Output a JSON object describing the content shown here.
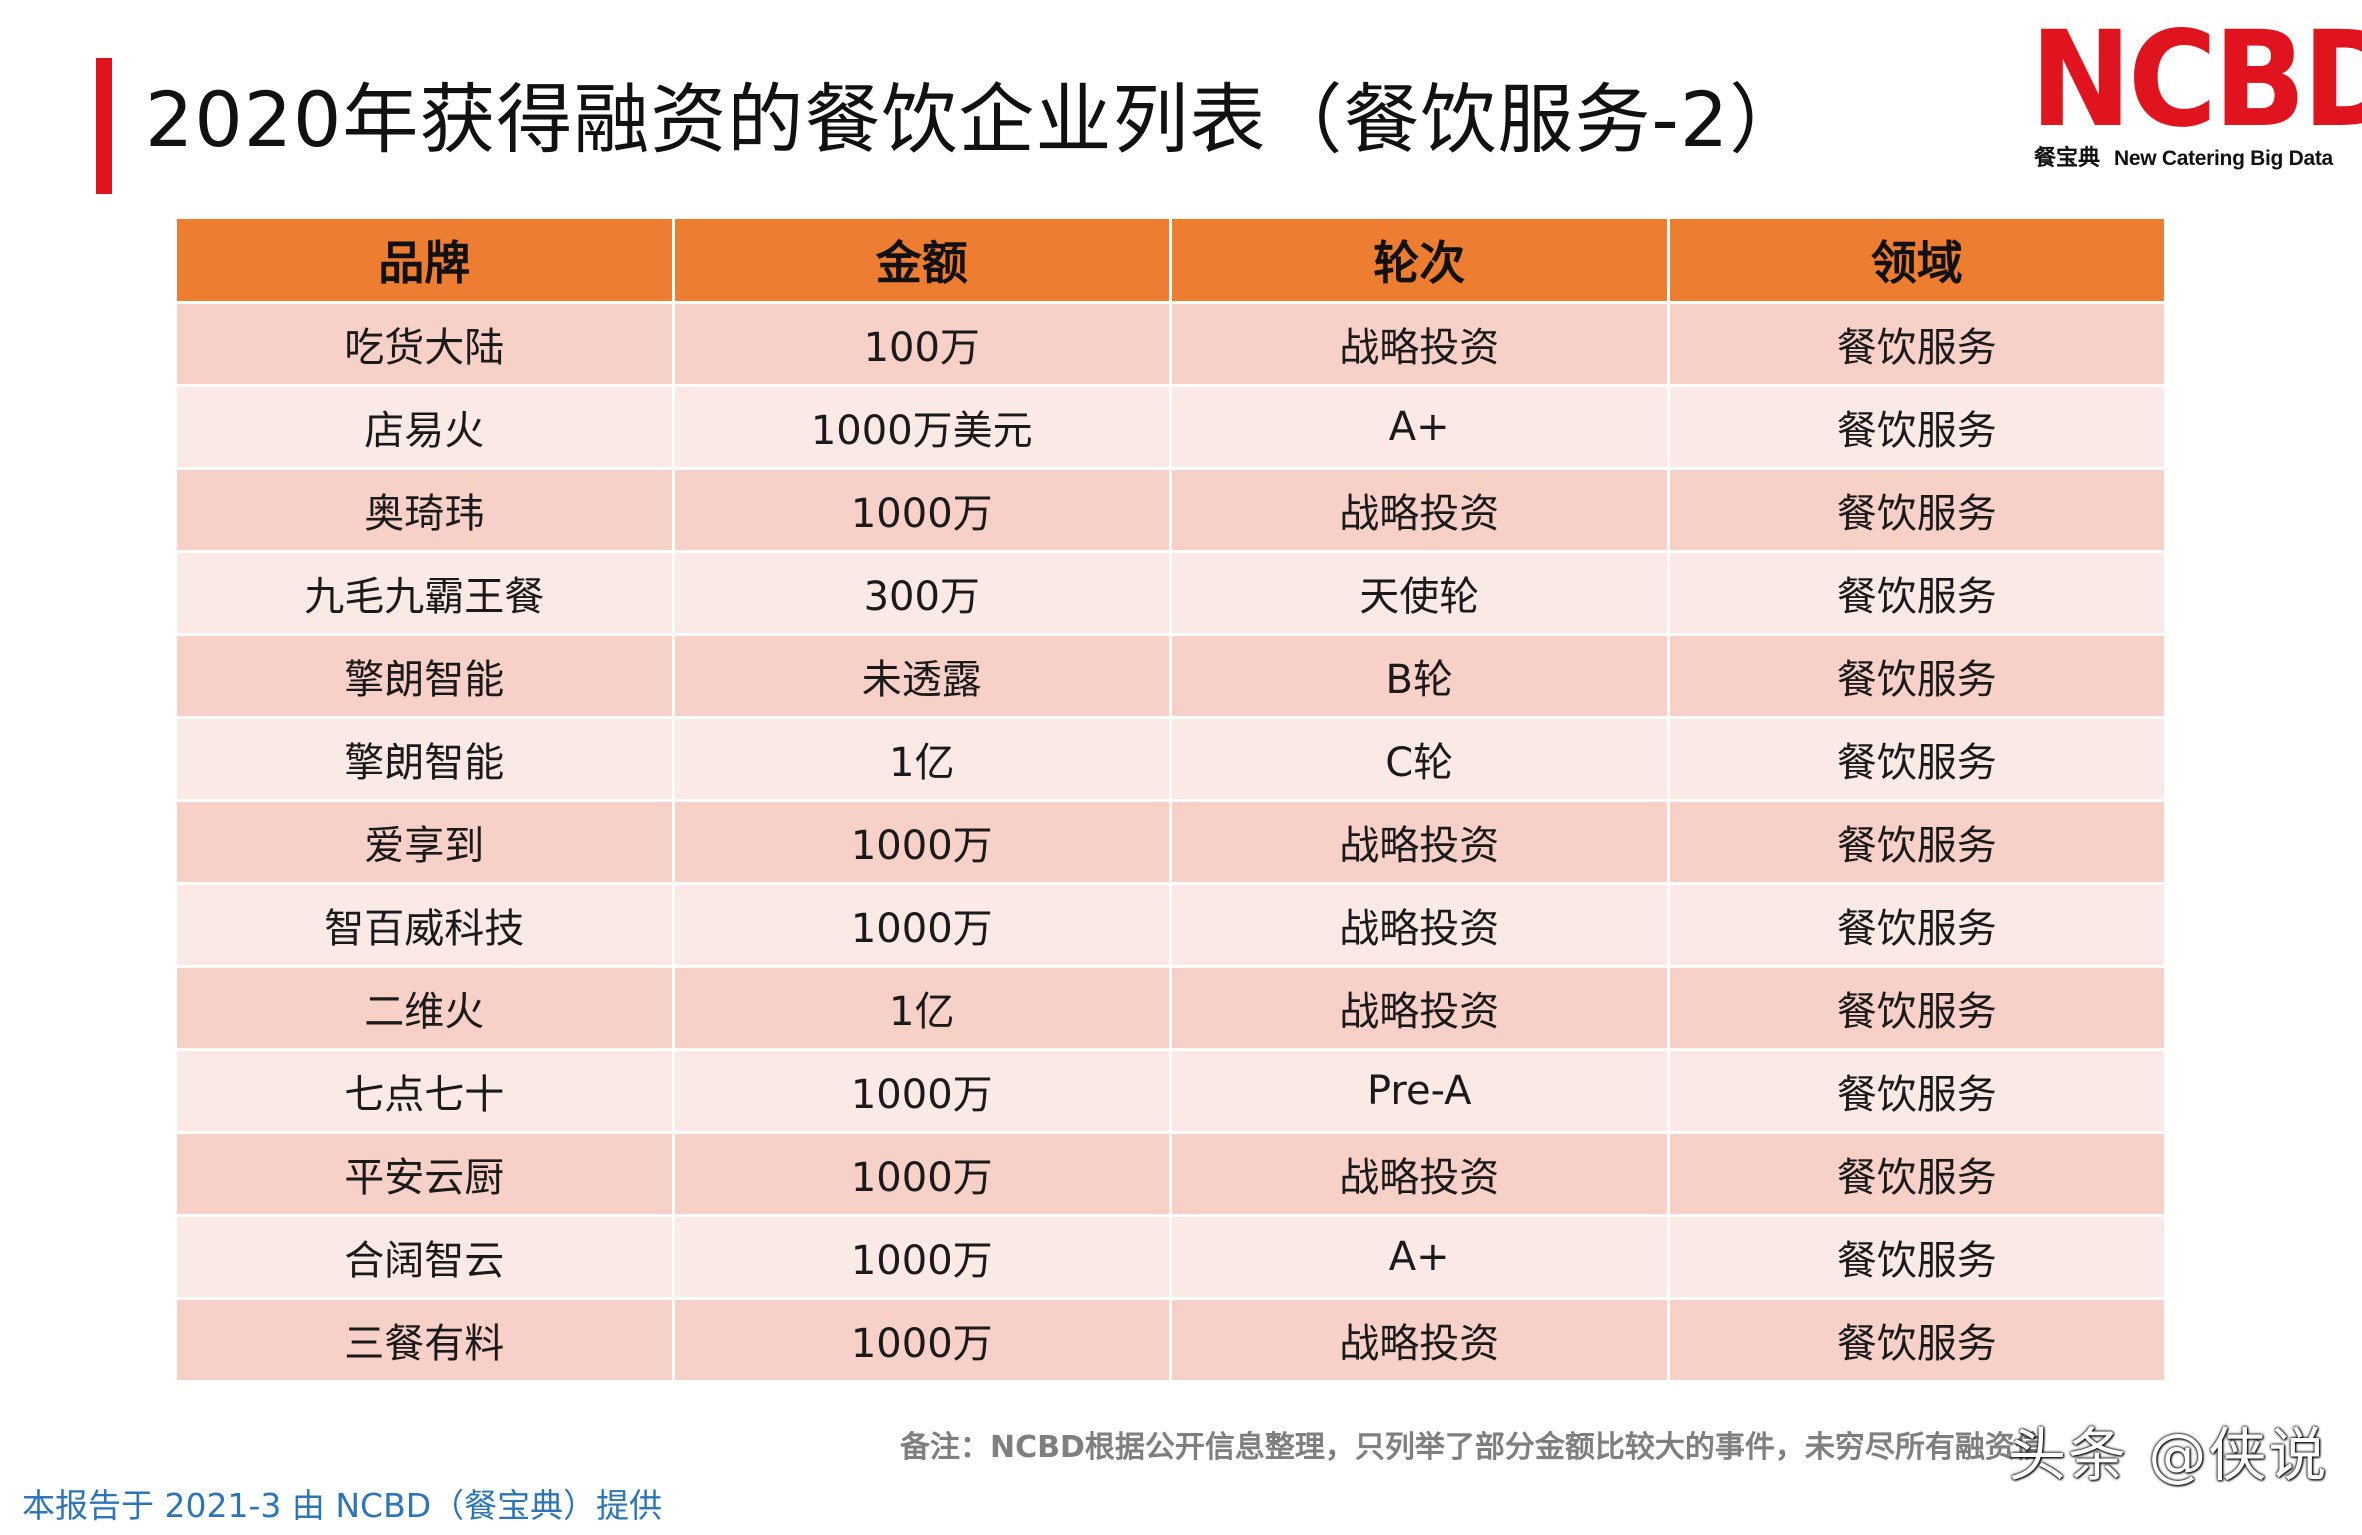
{
  "title": "2020年获得融资的餐饮企业列表（餐饮服务-2）",
  "logo": {
    "mark": "NCBD",
    "cn": "餐宝典",
    "en": "New Catering Big Data",
    "color": "#e0141e"
  },
  "table": {
    "headers": [
      "品牌",
      "金额",
      "轮次",
      "领域"
    ],
    "header_color": "#ed7d31",
    "row_colors": [
      "#f7d0c8",
      "#fbe9e6"
    ],
    "rows": [
      [
        "吃货大陆",
        "100万",
        "战略投资",
        "餐饮服务"
      ],
      [
        "店易火",
        "1000万美元",
        "A+",
        "餐饮服务"
      ],
      [
        "奥琦玮",
        "1000万",
        "战略投资",
        "餐饮服务"
      ],
      [
        "九毛九霸王餐",
        "300万",
        "天使轮",
        "餐饮服务"
      ],
      [
        "擎朗智能",
        "未透露",
        "B轮",
        "餐饮服务"
      ],
      [
        "擎朗智能",
        "1亿",
        "C轮",
        "餐饮服务"
      ],
      [
        "爱享到",
        "1000万",
        "战略投资",
        "餐饮服务"
      ],
      [
        "智百威科技",
        "1000万",
        "战略投资",
        "餐饮服务"
      ],
      [
        "二维火",
        "1亿",
        "战略投资",
        "餐饮服务"
      ],
      [
        "七点七十",
        "1000万",
        "Pre-A",
        "餐饮服务"
      ],
      [
        "平安云厨",
        "1000万",
        "战略投资",
        "餐饮服务"
      ],
      [
        "合阔智云",
        "1000万",
        "A+",
        "餐饮服务"
      ],
      [
        "三餐有料",
        "1000万",
        "战略投资",
        "餐饮服务"
      ]
    ]
  },
  "note": "备注：NCBD根据公开信息整理，只列举了部分金额比较大的事件，未穷尽所有融资信",
  "footer": "本报告于 2021-3 由 NCBD（餐宝典）提供",
  "watermark": "头条 @侠说",
  "accent_color": "#e0141e",
  "footer_color": "#2e75b6"
}
